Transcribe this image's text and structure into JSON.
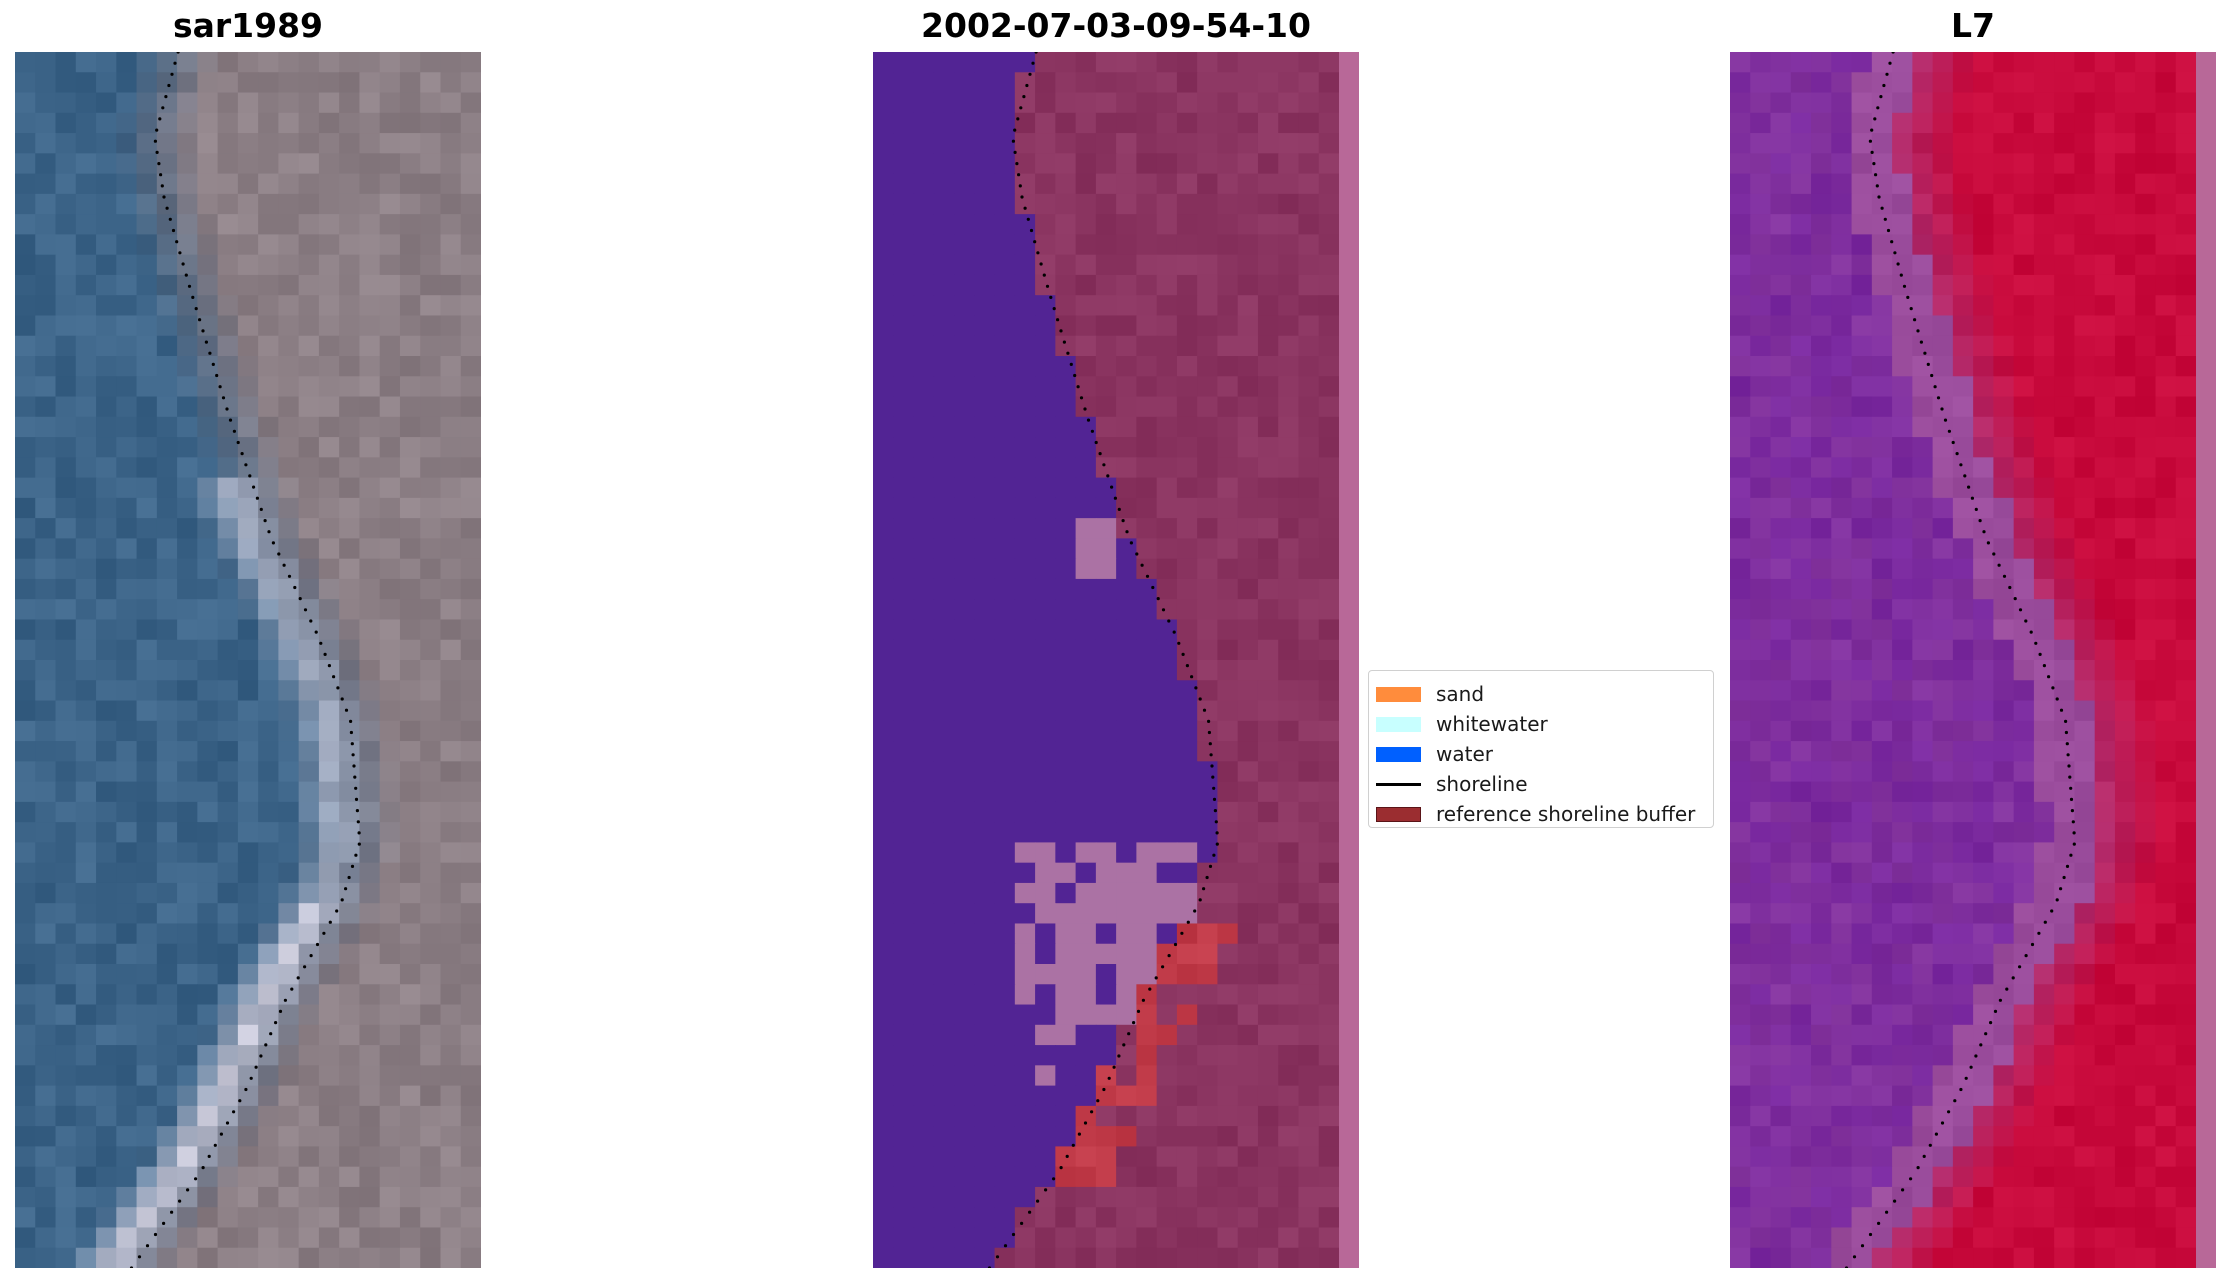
{
  "panels": [
    {
      "id": "rgb",
      "title": "sar1989",
      "icon": "satellite-rgb-image"
    },
    {
      "id": "classified",
      "title": "2002-07-03-09-54-10",
      "icon": "classified-image"
    },
    {
      "id": "index",
      "title": "L7",
      "icon": "water-index-image"
    }
  ],
  "legend": {
    "items": [
      {
        "label": "sand",
        "color": "#ff8c3c",
        "kind": "patch"
      },
      {
        "label": "whitewater",
        "color": "#c8ffff",
        "kind": "patch"
      },
      {
        "label": "water",
        "color": "#0060ff",
        "kind": "patch"
      },
      {
        "label": "shoreline",
        "color": "#000000",
        "kind": "line"
      },
      {
        "label": "reference shoreline buffer",
        "color": "#9b2d30",
        "kind": "patch"
      }
    ]
  },
  "colors": {
    "rgb_water": "#3c6488",
    "rgb_land": "#8c7f85",
    "rgb_whitewater": "#d8d4e2",
    "classified_water": "#522494",
    "classified_land": "#8a3460",
    "classified_whitewater": "#ab72a4",
    "classified_buffer": "#c03a48",
    "classified_edge": "#b86898",
    "index_low": "#6a18a0",
    "index_mid": "#9a4c9c",
    "index_high": "#c80a3c"
  }
}
